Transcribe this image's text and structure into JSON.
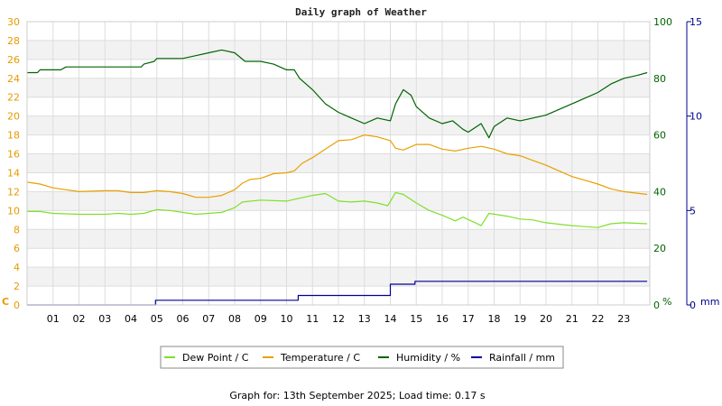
{
  "chart_data": {
    "type": "line",
    "title": "Daily graph of Weather",
    "footer": "Graph for: 13th September 2025; Load time: 0.17 s",
    "x_ticks": [
      "01",
      "02",
      "03",
      "04",
      "05",
      "06",
      "07",
      "08",
      "09",
      "10",
      "11",
      "12",
      "13",
      "14",
      "15",
      "16",
      "17",
      "18",
      "19",
      "20",
      "21",
      "22",
      "23"
    ],
    "xlim": [
      0,
      24
    ],
    "axes": {
      "left": {
        "unit": "C",
        "ylim": [
          0,
          30
        ],
        "ticks": [
          "0",
          "2",
          "4",
          "6",
          "8",
          "10",
          "12",
          "14",
          "16",
          "18",
          "20",
          "22",
          "24",
          "26",
          "28",
          "30"
        ],
        "color": "#e69b00"
      },
      "right1": {
        "unit": "%",
        "ylim": [
          0,
          100
        ],
        "ticks": [
          "0",
          "20",
          "40",
          "60",
          "80",
          "100"
        ],
        "color": "#006400"
      },
      "right2": {
        "unit": "mm",
        "ylim": [
          0,
          15
        ],
        "ticks": [
          "0",
          "5",
          "10",
          "15"
        ],
        "color": "#00008b"
      }
    },
    "grid": true,
    "legend_position": "bottom-center",
    "series": [
      {
        "name": "Dew Point / C",
        "color": "#7ee02a",
        "axis": "left",
        "points": [
          [
            0,
            9.9
          ],
          [
            0.5,
            9.9
          ],
          [
            1,
            9.7
          ],
          [
            2,
            9.6
          ],
          [
            3,
            9.6
          ],
          [
            3.5,
            9.7
          ],
          [
            4,
            9.6
          ],
          [
            4.5,
            9.7
          ],
          [
            5,
            10.1
          ],
          [
            5.5,
            10.0
          ],
          [
            6,
            9.8
          ],
          [
            6.5,
            9.6
          ],
          [
            7,
            9.7
          ],
          [
            7.5,
            9.8
          ],
          [
            8,
            10.3
          ],
          [
            8.3,
            10.9
          ],
          [
            9,
            11.1
          ],
          [
            10,
            11.0
          ],
          [
            10.5,
            11.3
          ],
          [
            11,
            11.6
          ],
          [
            11.5,
            11.8
          ],
          [
            12,
            11.0
          ],
          [
            12.5,
            10.9
          ],
          [
            13,
            11.0
          ],
          [
            13.5,
            10.8
          ],
          [
            13.9,
            10.5
          ],
          [
            14.2,
            11.9
          ],
          [
            14.5,
            11.7
          ],
          [
            15,
            10.8
          ],
          [
            15.5,
            10.0
          ],
          [
            16,
            9.5
          ],
          [
            16.5,
            8.9
          ],
          [
            16.8,
            9.3
          ],
          [
            17.2,
            8.8
          ],
          [
            17.5,
            8.4
          ],
          [
            17.8,
            9.7
          ],
          [
            18.5,
            9.4
          ],
          [
            19,
            9.1
          ],
          [
            19.5,
            9.0
          ],
          [
            20,
            8.7
          ],
          [
            21,
            8.4
          ],
          [
            22,
            8.2
          ],
          [
            22.5,
            8.6
          ],
          [
            23,
            8.7
          ],
          [
            23.9,
            8.6
          ]
        ]
      },
      {
        "name": "Temperature / C",
        "color": "#e8a000",
        "axis": "left",
        "points": [
          [
            0,
            13.0
          ],
          [
            0.5,
            12.8
          ],
          [
            1,
            12.4
          ],
          [
            2,
            12.0
          ],
          [
            3,
            12.1
          ],
          [
            3.5,
            12.1
          ],
          [
            4,
            11.9
          ],
          [
            4.5,
            11.9
          ],
          [
            5,
            12.1
          ],
          [
            5.5,
            12.0
          ],
          [
            6,
            11.8
          ],
          [
            6.5,
            11.4
          ],
          [
            7,
            11.4
          ],
          [
            7.5,
            11.6
          ],
          [
            8,
            12.2
          ],
          [
            8.3,
            12.9
          ],
          [
            8.6,
            13.3
          ],
          [
            9,
            13.4
          ],
          [
            9.5,
            13.9
          ],
          [
            10,
            14.0
          ],
          [
            10.3,
            14.2
          ],
          [
            10.6,
            15.0
          ],
          [
            11,
            15.6
          ],
          [
            11.5,
            16.5
          ],
          [
            12,
            17.4
          ],
          [
            12.5,
            17.5
          ],
          [
            13,
            18.0
          ],
          [
            13.5,
            17.8
          ],
          [
            14,
            17.4
          ],
          [
            14.2,
            16.6
          ],
          [
            14.5,
            16.4
          ],
          [
            15,
            17.0
          ],
          [
            15.5,
            17.0
          ],
          [
            16,
            16.5
          ],
          [
            16.5,
            16.3
          ],
          [
            17,
            16.6
          ],
          [
            17.5,
            16.8
          ],
          [
            18,
            16.5
          ],
          [
            18.5,
            16.0
          ],
          [
            19,
            15.8
          ],
          [
            19.5,
            15.3
          ],
          [
            20,
            14.8
          ],
          [
            20.5,
            14.2
          ],
          [
            21,
            13.6
          ],
          [
            21.5,
            13.2
          ],
          [
            22,
            12.8
          ],
          [
            22.5,
            12.3
          ],
          [
            23,
            12.0
          ],
          [
            23.9,
            11.7
          ]
        ]
      },
      {
        "name": "Humidity / %",
        "color": "#006400",
        "axis": "right1",
        "points": [
          [
            0,
            82
          ],
          [
            0.4,
            82
          ],
          [
            0.5,
            83
          ],
          [
            1.3,
            83
          ],
          [
            1.5,
            84
          ],
          [
            2.4,
            84
          ],
          [
            2.6,
            84
          ],
          [
            3.4,
            84
          ],
          [
            3.5,
            84
          ],
          [
            4.4,
            84
          ],
          [
            4.5,
            85
          ],
          [
            4.9,
            86
          ],
          [
            5.0,
            87
          ],
          [
            6.0,
            87
          ],
          [
            6.5,
            88
          ],
          [
            7.0,
            89
          ],
          [
            7.5,
            90
          ],
          [
            8.0,
            89
          ],
          [
            8.4,
            86
          ],
          [
            9.0,
            86
          ],
          [
            9.5,
            85
          ],
          [
            10.0,
            83
          ],
          [
            10.3,
            83
          ],
          [
            10.5,
            80
          ],
          [
            11.0,
            76
          ],
          [
            11.5,
            71
          ],
          [
            12.0,
            68
          ],
          [
            12.5,
            66
          ],
          [
            13.0,
            64
          ],
          [
            13.5,
            66
          ],
          [
            14.0,
            65
          ],
          [
            14.2,
            71
          ],
          [
            14.5,
            76
          ],
          [
            14.8,
            74
          ],
          [
            15.0,
            70
          ],
          [
            15.5,
            66
          ],
          [
            16.0,
            64
          ],
          [
            16.4,
            65
          ],
          [
            16.8,
            62
          ],
          [
            17.0,
            61
          ],
          [
            17.5,
            64
          ],
          [
            17.8,
            59
          ],
          [
            18.0,
            63
          ],
          [
            18.5,
            66
          ],
          [
            19.0,
            65
          ],
          [
            19.5,
            66
          ],
          [
            20.0,
            67
          ],
          [
            20.5,
            69
          ],
          [
            21.0,
            71
          ],
          [
            21.5,
            73
          ],
          [
            22.0,
            75
          ],
          [
            22.5,
            78
          ],
          [
            23.0,
            80
          ],
          [
            23.5,
            81
          ],
          [
            23.9,
            82
          ]
        ]
      },
      {
        "name": "Rainfall / mm",
        "color": "#00009a",
        "axis": "right2",
        "points": [
          [
            0,
            0
          ],
          [
            4.95,
            0
          ],
          [
            4.95,
            0.25
          ],
          [
            10.45,
            0.25
          ],
          [
            10.45,
            0.5
          ],
          [
            14.0,
            0.5
          ],
          [
            14.0,
            1.1
          ],
          [
            14.95,
            1.1
          ],
          [
            14.95,
            1.25
          ],
          [
            23.9,
            1.25
          ]
        ]
      }
    ]
  }
}
